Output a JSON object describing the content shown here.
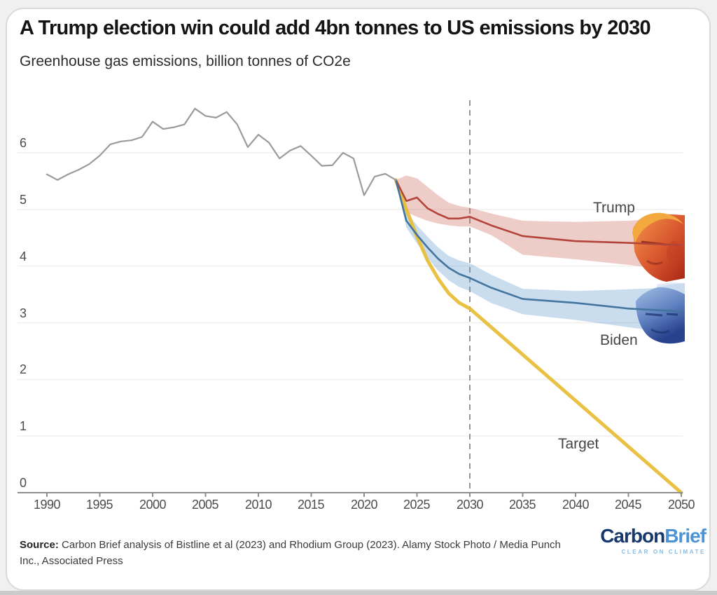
{
  "header": {
    "title": "A Trump election win could add 4bn tonnes to US emissions by 2030",
    "subtitle": "Greenhouse gas emissions, billion tonnes of CO2e"
  },
  "chart_data": {
    "type": "line",
    "title": "A Trump election win could add 4bn tonnes to US emissions by 2030",
    "ylabel": "Greenhouse gas emissions, billion tonnes of CO2e",
    "xlabel": "",
    "x_ticks": [
      1990,
      1995,
      2000,
      2005,
      2010,
      2015,
      2020,
      2025,
      2030,
      2035,
      2040,
      2045,
      2050
    ],
    "y_ticks": [
      0,
      1,
      2,
      3,
      4,
      5,
      6
    ],
    "xlim": [
      1989,
      2051
    ],
    "ylim": [
      0,
      6.95
    ],
    "grid": "horizontal",
    "legend_position": "inline-labels",
    "event_line": {
      "x": 2030,
      "style": "dashed"
    },
    "series": [
      {
        "name": "Historical",
        "label": "",
        "color": "#9b9b9b",
        "width": 2.2,
        "x": [
          1990,
          1991,
          1992,
          1993,
          1994,
          1995,
          1996,
          1997,
          1998,
          1999,
          2000,
          2001,
          2002,
          2003,
          2004,
          2005,
          2006,
          2007,
          2008,
          2009,
          2010,
          2011,
          2012,
          2013,
          2014,
          2015,
          2016,
          2017,
          2018,
          2019,
          2020,
          2021,
          2022,
          2023
        ],
        "values": [
          5.62,
          5.52,
          5.62,
          5.7,
          5.8,
          5.95,
          6.15,
          6.2,
          6.22,
          6.28,
          6.55,
          6.42,
          6.45,
          6.5,
          6.78,
          6.65,
          6.62,
          6.72,
          6.5,
          6.1,
          6.32,
          6.18,
          5.9,
          6.04,
          6.12,
          5.95,
          5.77,
          5.78,
          6.0,
          5.9,
          5.25,
          5.58,
          5.63,
          5.52
        ]
      },
      {
        "name": "Trump",
        "label": "Trump",
        "color": "#b2443a",
        "band_color": "rgba(198,90,76,0.30)",
        "width": 2.6,
        "x": [
          2023,
          2024,
          2025,
          2026,
          2027,
          2028,
          2029,
          2030,
          2032,
          2035,
          2040,
          2045,
          2050
        ],
        "values": [
          5.52,
          5.15,
          5.21,
          5.02,
          4.92,
          4.84,
          4.84,
          4.87,
          4.72,
          4.53,
          4.44,
          4.41,
          4.37
        ],
        "band_upper": [
          5.52,
          5.6,
          5.55,
          5.4,
          5.25,
          5.12,
          5.06,
          5.03,
          4.93,
          4.8,
          4.78,
          4.8,
          4.86
        ],
        "band_lower": [
          5.52,
          4.95,
          4.87,
          4.8,
          4.75,
          4.72,
          4.7,
          4.7,
          4.55,
          4.2,
          4.12,
          4.02,
          3.91
        ]
      },
      {
        "name": "Biden",
        "label": "Biden",
        "color": "#44759e",
        "band_color": "rgba(90,150,205,0.32)",
        "width": 2.6,
        "x": [
          2023,
          2024,
          2025,
          2026,
          2027,
          2028,
          2029,
          2030,
          2032,
          2035,
          2040,
          2045,
          2050
        ],
        "values": [
          5.52,
          4.8,
          4.55,
          4.33,
          4.13,
          3.97,
          3.86,
          3.79,
          3.62,
          3.42,
          3.35,
          3.25,
          3.2
        ],
        "band_upper": [
          5.52,
          4.95,
          4.72,
          4.52,
          4.33,
          4.18,
          4.1,
          4.05,
          3.85,
          3.6,
          3.56,
          3.59,
          3.63
        ],
        "band_lower": [
          5.52,
          4.68,
          4.4,
          4.15,
          3.92,
          3.75,
          3.63,
          3.56,
          3.35,
          3.15,
          3.05,
          2.92,
          2.8
        ]
      },
      {
        "name": "Target",
        "label": "Target",
        "color": "#e7bd35",
        "width": 5,
        "x": [
          2023,
          2024,
          2025,
          2026,
          2027,
          2028,
          2029,
          2030,
          2050
        ],
        "values": [
          5.52,
          5.0,
          4.52,
          4.1,
          3.78,
          3.52,
          3.35,
          3.25,
          0
        ]
      }
    ],
    "annotations": [
      {
        "text": "Trump",
        "x": 2042,
        "y": 5.0
      },
      {
        "text": "Biden",
        "x": 2042,
        "y": 2.7
      },
      {
        "text": "Target",
        "x": 2038,
        "y": 0.85
      }
    ]
  },
  "theme": {
    "grid_color": "#efefed",
    "axis_color": "#8e8e8e",
    "dashed_line_color": "#979797",
    "tick_text_color": "#4c4c4c",
    "card_background": "#ffffff",
    "page_background": "#f0f0f0"
  },
  "footer": {
    "source_prefix": "Source:",
    "source_text": " Carbon Brief analysis of Bistline et al (2023) and Rhodium Group (2023). Alamy Stock Photo / Media Punch Inc., Associated Press",
    "logo_carbon": "Carbon",
    "logo_brief": "Brief",
    "logo_tagline": "CLEAR ON CLIMATE"
  }
}
